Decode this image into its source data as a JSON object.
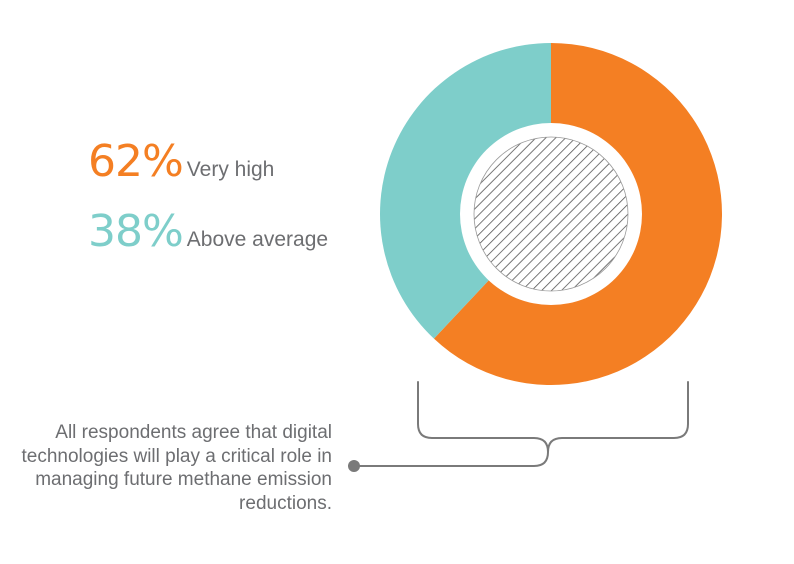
{
  "chart_data": {
    "type": "pie",
    "variant": "donut",
    "slices": [
      {
        "label": "Very high",
        "value": 62,
        "display": "62%",
        "color": "#f47f23"
      },
      {
        "label": "Above average",
        "value": 38,
        "display": "38%",
        "color": "#7ececa"
      }
    ],
    "center_pattern": "diagonal-hatch",
    "legend_placement": "left",
    "annotation": "All respondents agree that digital technologies will play a critical role in managing future methane emission reductions."
  },
  "colors": {
    "very_high": "#f47f23",
    "above_average": "#7ececa",
    "text": "#6d6e71",
    "bracket": "#7a7a7a"
  }
}
